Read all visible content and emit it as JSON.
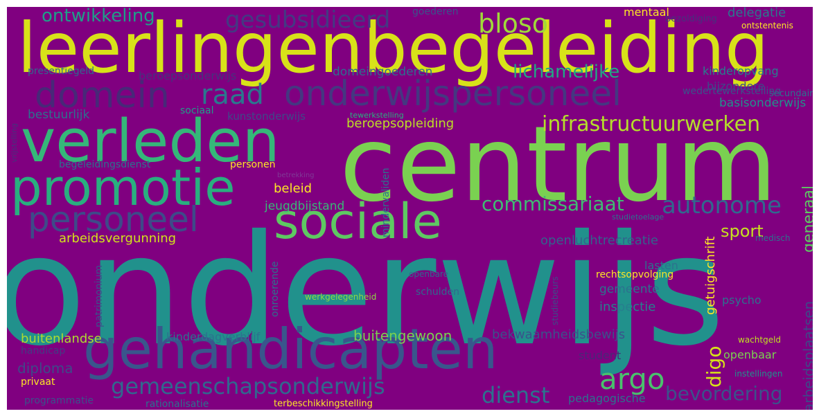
{
  "background": "#800080",
  "words": [
    {
      "text": "onderwijs",
      "color": "#21918c"
    },
    {
      "text": "centrum",
      "color": "#7ad151"
    },
    {
      "text": "leerlingenbegeleiding",
      "color": "#d8e219"
    },
    {
      "text": "gehandicapten",
      "color": "#39568c"
    },
    {
      "text": "verleden",
      "color": "#35b779"
    },
    {
      "text": "sociale",
      "color": "#5ec962"
    },
    {
      "text": "promotie",
      "color": "#29af7f"
    },
    {
      "text": "domein",
      "color": "#482878"
    },
    {
      "text": "onderwijspersoneel",
      "color": "#453781"
    },
    {
      "text": "personeel",
      "color": "#3e4a89"
    },
    {
      "text": "raad",
      "color": "#2a788e"
    },
    {
      "text": "infrastructuurwerken",
      "color": "#b5de2b"
    },
    {
      "text": "autonome",
      "color": "#31688e"
    },
    {
      "text": "commissariaat",
      "color": "#3fbc73"
    },
    {
      "text": "gemeenschapsonderwijs",
      "color": "#31688e"
    },
    {
      "text": "argo",
      "color": "#4ac16d"
    },
    {
      "text": "dienst",
      "color": "#2c728e"
    },
    {
      "text": "bevordering",
      "color": "#3b528b"
    },
    {
      "text": "bloso",
      "color": "#a0da39"
    },
    {
      "text": "lichamelijke",
      "color": "#22a884"
    },
    {
      "text": "gesubsidieerd",
      "color": "#443983"
    },
    {
      "text": "ontwikkeling",
      "color": "#1f9e89"
    },
    {
      "text": "sport",
      "color": "#c8e020"
    },
    {
      "text": "generaal",
      "color": "#5ec962"
    },
    {
      "text": "digo",
      "color": "#d8e219"
    },
    {
      "text": "getuigschrift",
      "color": "#fde725"
    },
    {
      "text": "arbeidsplaatsen",
      "color": "#3e4989"
    },
    {
      "text": "openluchtrecreatie",
      "color": "#33638d"
    },
    {
      "text": "beroepsopleiding",
      "color": "#bddf26"
    },
    {
      "text": "buitengewoon",
      "color": "#7ad151"
    },
    {
      "text": "buitenlandse",
      "color": "#addc30"
    },
    {
      "text": "bekwaamheidsbewijs",
      "color": "#3b528b"
    },
    {
      "text": "arbeidsvergunning",
      "color": "#d2e21b"
    },
    {
      "text": "basisonderwijs",
      "color": "#21918c"
    },
    {
      "text": "domeingoederen",
      "color": "#2e6e8e"
    },
    {
      "text": "kinderopvang",
      "color": "#277f8e"
    },
    {
      "text": "delegatie",
      "color": "#2a788e"
    },
    {
      "text": "jeugdbijstand",
      "color": "#38b977"
    },
    {
      "text": "beleid",
      "color": "#fde725"
    },
    {
      "text": "bestuurlijk",
      "color": "#2c728e"
    },
    {
      "text": "kinderdagverblijf",
      "color": "#2c728e"
    },
    {
      "text": "gemeente",
      "color": "#2c728e"
    },
    {
      "text": "inspectie",
      "color": "#277f8e"
    },
    {
      "text": "student",
      "color": "#482878"
    },
    {
      "text": "pedagogische",
      "color": "#2c728e"
    },
    {
      "text": "openbaar",
      "color": "#7ad151"
    },
    {
      "text": "diploma",
      "color": "#3e4a89"
    },
    {
      "text": "mentaal",
      "color": "#fde725"
    },
    {
      "text": "goederen",
      "color": "#3b528b"
    },
    {
      "text": "lasten",
      "color": "#2c728e"
    },
    {
      "text": "psycho",
      "color": "#2c728e"
    },
    {
      "text": "beroepsonderwijs",
      "color": "#46337e"
    },
    {
      "text": "bijzondere",
      "color": "#3e4989"
    },
    {
      "text": "kunstonderwijs",
      "color": "#3e4989"
    },
    {
      "text": "presentiegeld",
      "color": "#31688e"
    },
    {
      "text": "rechtsopvolging",
      "color": "#fde725"
    },
    {
      "text": "schulden",
      "color": "#31688e"
    },
    {
      "text": "werkgelegenheid",
      "color": "#8fd744"
    },
    {
      "text": "begeleidingsdienst",
      "color": "#2c728e"
    },
    {
      "text": "personen",
      "color": "#fde725"
    },
    {
      "text": "sociaal",
      "color": "#1f9e89"
    },
    {
      "text": "privaat",
      "color": "#fde725"
    },
    {
      "text": "handicap",
      "color": "#433d84"
    },
    {
      "text": "programmatie",
      "color": "#3b528b"
    },
    {
      "text": "rationalisatie",
      "color": "#2c728e"
    },
    {
      "text": "terbeschikkingstelling",
      "color": "#fde725"
    },
    {
      "text": "instellingen",
      "color": "#21918c"
    },
    {
      "text": "wachtgeld",
      "color": "#c2df23"
    },
    {
      "text": "secundair",
      "color": "#2c728e"
    },
    {
      "text": "ontstentenis",
      "color": "#fde725"
    },
    {
      "text": "vrijstelling",
      "color": "#46327e"
    },
    {
      "text": "bezoldiging",
      "color": "#46327e"
    },
    {
      "text": "tewerkstelling",
      "color": "#2ab07f"
    },
    {
      "text": "betrekking",
      "color": "#7f3a96"
    },
    {
      "text": "studietoelage",
      "color": "#2c728e"
    },
    {
      "text": "medisch",
      "color": "#2c728e"
    },
    {
      "text": "mindervaliden",
      "color": "#2c728e"
    },
    {
      "text": "onroerende",
      "color": "#2c728e"
    },
    {
      "text": "openbare",
      "color": "#31688e"
    },
    {
      "text": "patrimonium",
      "color": "#3b528b"
    },
    {
      "text": "studiebeurs",
      "color": "#3e4a89"
    },
    {
      "text": "wedertewerkstelling",
      "color": "#3b528b"
    }
  ]
}
